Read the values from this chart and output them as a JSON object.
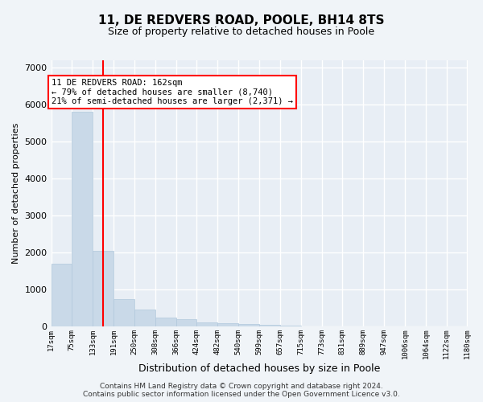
{
  "title1": "11, DE REDVERS ROAD, POOLE, BH14 8TS",
  "title2": "Size of property relative to detached houses in Poole",
  "xlabel": "Distribution of detached houses by size in Poole",
  "ylabel": "Number of detached properties",
  "bin_edges": [
    17,
    75,
    133,
    191,
    250,
    308,
    366,
    424,
    482,
    540,
    599,
    657,
    715,
    773,
    831,
    889,
    947,
    1006,
    1064,
    1122,
    1180
  ],
  "bar_heights": [
    1700,
    5800,
    2050,
    750,
    450,
    250,
    200,
    120,
    90,
    70,
    50,
    20,
    10,
    5,
    3,
    2,
    1,
    1,
    1,
    1
  ],
  "bar_color": "#c9d9e8",
  "bar_edge_color": "#b0c8dc",
  "red_line_x": 162,
  "ylim": [
    0,
    7200
  ],
  "yticks": [
    0,
    1000,
    2000,
    3000,
    4000,
    5000,
    6000,
    7000
  ],
  "annotation_box_text": "11 DE REDVERS ROAD: 162sqm\n← 79% of detached houses are smaller (8,740)\n21% of semi-detached houses are larger (2,371) →",
  "footer_line1": "Contains HM Land Registry data © Crown copyright and database right 2024.",
  "footer_line2": "Contains public sector information licensed under the Open Government Licence v3.0.",
  "bg_color": "#f0f4f8",
  "plot_bg_color": "#e8eef5",
  "grid_color": "#ffffff",
  "title1_fontsize": 11,
  "title2_fontsize": 9,
  "ylabel_fontsize": 8,
  "xlabel_fontsize": 9
}
